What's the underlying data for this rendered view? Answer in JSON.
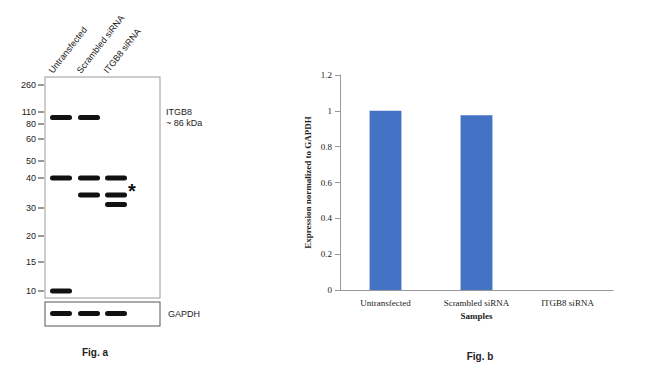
{
  "blot": {
    "caption": "Fig. a",
    "lanes": [
      "Untransfected",
      "Scrambled siRNA",
      "ITGB8 siRNA"
    ],
    "markers": [
      260,
      110,
      80,
      60,
      50,
      40,
      30,
      20,
      15,
      10
    ],
    "target": {
      "label": "ITGB8",
      "size": "~ 86 kDa",
      "kda": 95
    },
    "bands": [
      {
        "lane": 0,
        "kda": 95
      },
      {
        "lane": 0,
        "kda": 40
      },
      {
        "lane": 0,
        "kda": 10
      },
      {
        "lane": 1,
        "kda": 95
      },
      {
        "lane": 1,
        "kda": 40
      },
      {
        "lane": 1,
        "kda": 34
      },
      {
        "lane": 2,
        "kda": 40
      },
      {
        "lane": 2,
        "kda": 34
      },
      {
        "lane": 2,
        "kda": 31
      }
    ],
    "asterisk": {
      "text": "*",
      "kda": 37
    },
    "loading_control": {
      "label": "GAPDH",
      "lanes": [
        0,
        1,
        2
      ]
    }
  },
  "chart_data": {
    "type": "bar",
    "caption": "Fig. b",
    "x_label": "Samples",
    "y_label": "Expression normalized to GAPDH",
    "categories": [
      "Untransfected",
      "Scrambled siRNA",
      "ITGB8 siRNA"
    ],
    "values": [
      1.0,
      0.975,
      0
    ],
    "color": "#4472c4",
    "ylim": [
      0,
      1.2
    ],
    "yticks": [
      0,
      0.2,
      0.4,
      0.6,
      0.8,
      1,
      1.2
    ],
    "grid": false
  }
}
